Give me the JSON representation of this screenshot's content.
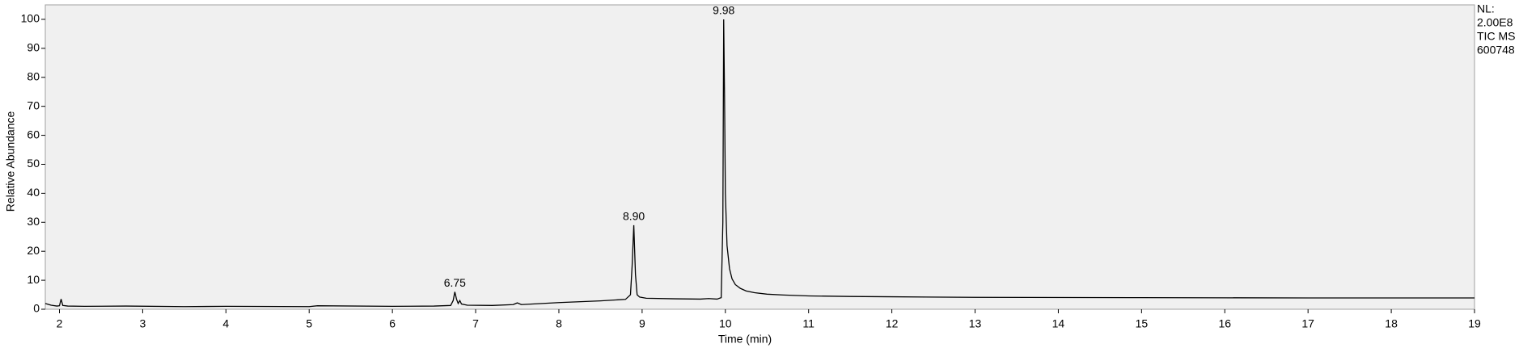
{
  "chart_data": {
    "type": "line",
    "x_label": "Time (min)",
    "y_label": "Relative Abundance",
    "side_label": [
      "NL:",
      "2.00E8",
      "TIC  MS",
      "600748"
    ],
    "color": "#000000",
    "x": [
      1.83,
      1.9,
      1.97,
      2.0,
      2.02,
      2.04,
      2.1,
      2.3,
      2.8,
      3.5,
      4.0,
      5.0,
      5.1,
      6.0,
      6.5,
      6.7,
      6.73,
      6.75,
      6.77,
      6.79,
      6.81,
      6.83,
      6.9,
      7.2,
      7.45,
      7.5,
      7.55,
      8.0,
      8.5,
      8.8,
      8.86,
      8.88,
      8.9,
      8.92,
      8.94,
      8.97,
      9.05,
      9.4,
      9.7,
      9.8,
      9.9,
      9.95,
      9.97,
      9.98,
      9.99,
      10.0,
      10.02,
      10.05,
      10.08,
      10.12,
      10.18,
      10.25,
      10.35,
      10.5,
      10.7,
      11.0,
      11.5,
      12.0,
      13.0,
      15.0,
      17.0,
      19.0
    ],
    "values": [
      2.0,
      1.4,
      1.1,
      1.2,
      3.5,
      1.3,
      1.1,
      1.0,
      1.1,
      0.9,
      1.0,
      0.9,
      1.2,
      1.0,
      1.1,
      1.3,
      3.0,
      6.0,
      3.5,
      2.0,
      3.0,
      1.8,
      1.4,
      1.3,
      1.6,
      2.2,
      1.6,
      2.3,
      2.9,
      3.4,
      5.0,
      15.0,
      29.0,
      12.0,
      5.0,
      4.2,
      3.8,
      3.6,
      3.5,
      3.7,
      3.5,
      4.0,
      30.0,
      100.0,
      74.0,
      40.0,
      22.0,
      14.0,
      10.5,
      8.5,
      7.2,
      6.3,
      5.7,
      5.2,
      4.9,
      4.6,
      4.4,
      4.3,
      4.1,
      4.0,
      3.9,
      3.9
    ],
    "annotations": [
      {
        "x": 6.75,
        "y": 6.0,
        "text": "6.75"
      },
      {
        "x": 8.9,
        "y": 29.0,
        "text": "8.90"
      },
      {
        "x": 9.98,
        "y": 100.0,
        "text": "9.98"
      }
    ],
    "xlim": [
      1.83,
      19
    ],
    "ylim": [
      0,
      105
    ],
    "xticks": [
      2,
      3,
      4,
      5,
      6,
      7,
      8,
      9,
      10,
      11,
      12,
      13,
      14,
      15,
      16,
      17,
      18,
      19
    ],
    "yticks": [
      0,
      10,
      20,
      30,
      40,
      50,
      60,
      70,
      80,
      90,
      100
    ]
  }
}
